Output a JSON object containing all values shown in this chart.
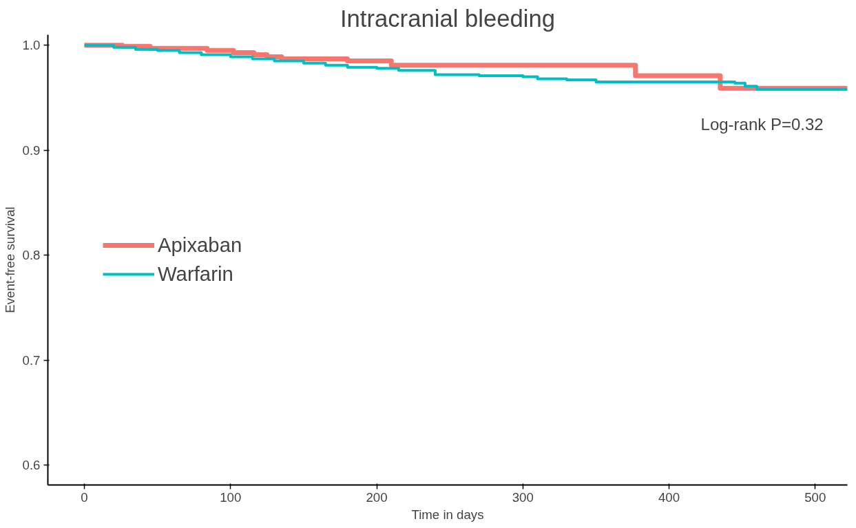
{
  "chart_data": {
    "type": "step",
    "title": "Intracranial bleeding",
    "xlabel": "Time in days",
    "ylabel": "Event-free survival",
    "annotations": [
      "Log-rank P=0.32"
    ],
    "series": [
      {
        "name": "Apixaban",
        "color": "#f8766d",
        "x": [
          0,
          26,
          45,
          84,
          102,
          116,
          125,
          135,
          180,
          210,
          377,
          435,
          522
        ],
        "values": [
          1.0,
          0.999,
          0.997,
          0.995,
          0.993,
          0.991,
          0.989,
          0.987,
          0.985,
          0.981,
          0.971,
          0.959,
          0.959
        ]
      },
      {
        "name": "Warfarin",
        "color": "#00bfc4",
        "x": [
          0,
          20,
          35,
          50,
          65,
          80,
          100,
          115,
          130,
          150,
          165,
          180,
          200,
          215,
          240,
          270,
          300,
          310,
          330,
          350,
          445,
          452,
          460,
          522
        ],
        "values": [
          1.0,
          0.998,
          0.996,
          0.995,
          0.993,
          0.991,
          0.989,
          0.987,
          0.985,
          0.983,
          0.981,
          0.979,
          0.978,
          0.976,
          0.972,
          0.971,
          0.97,
          0.968,
          0.967,
          0.965,
          0.964,
          0.961,
          0.958,
          0.958
        ]
      }
    ],
    "xlim": [
      -25,
      522
    ],
    "ylim": [
      0.581,
      1.01
    ],
    "xticks": [
      0,
      100,
      200,
      300,
      400,
      500
    ],
    "yticks": [
      0.6,
      0.7,
      0.8,
      0.9,
      {
        "value": 1.0,
        "label": "1.0"
      }
    ],
    "grid": false,
    "legend": "left"
  }
}
